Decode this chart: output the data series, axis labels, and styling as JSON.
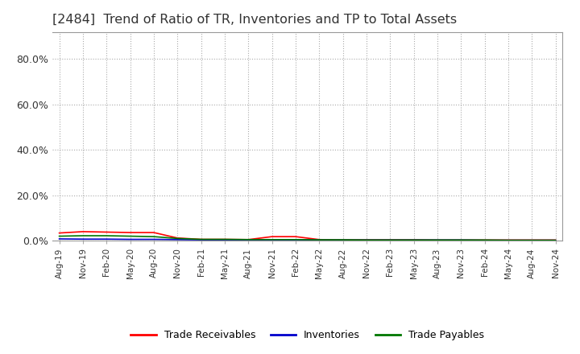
{
  "title": "[2484]  Trend of Ratio of TR, Inventories and TP to Total Assets",
  "ylim": [
    0.0,
    0.92
  ],
  "yticks": [
    0.0,
    0.2,
    0.4,
    0.6,
    0.8
  ],
  "ytick_labels": [
    "0.0%",
    "20.0%",
    "40.0%",
    "60.0%",
    "80.0%"
  ],
  "dates": [
    "Aug-19",
    "Nov-19",
    "Feb-20",
    "May-20",
    "Aug-20",
    "Nov-20",
    "Feb-21",
    "May-21",
    "Aug-21",
    "Nov-21",
    "Feb-22",
    "May-22",
    "Aug-22",
    "Nov-22",
    "Feb-23",
    "May-23",
    "Aug-23",
    "Nov-23",
    "Feb-24",
    "May-24",
    "Aug-24",
    "Nov-24"
  ],
  "trade_receivables": [
    0.034,
    0.04,
    0.038,
    0.036,
    0.036,
    0.012,
    0.006,
    0.006,
    0.005,
    0.018,
    0.018,
    0.005,
    0.004,
    0.004,
    0.004,
    0.004,
    0.003,
    0.003,
    0.003,
    0.003,
    0.003,
    0.003
  ],
  "inventories": [
    0.008,
    0.007,
    0.007,
    0.006,
    0.006,
    0.005,
    0.004,
    0.004,
    0.004,
    0.004,
    0.004,
    0.003,
    0.003,
    0.003,
    0.003,
    0.003,
    0.003,
    0.003,
    0.002,
    0.002,
    0.002,
    0.002
  ],
  "trade_payables": [
    0.02,
    0.022,
    0.022,
    0.02,
    0.018,
    0.01,
    0.006,
    0.006,
    0.005,
    0.005,
    0.005,
    0.004,
    0.004,
    0.003,
    0.003,
    0.003,
    0.003,
    0.003,
    0.003,
    0.002,
    0.002,
    0.002
  ],
  "line_colors": {
    "trade_receivables": "#FF0000",
    "inventories": "#0000CC",
    "trade_payables": "#007700"
  },
  "legend_labels": [
    "Trade Receivables",
    "Inventories",
    "Trade Payables"
  ],
  "background_color": "#FFFFFF",
  "grid_color": "#AAAAAA",
  "title_color": "#333333",
  "title_fontsize": 11.5
}
